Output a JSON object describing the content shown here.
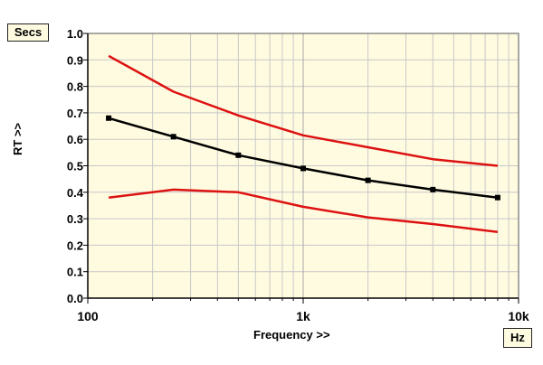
{
  "chart_data": {
    "type": "line",
    "x_scale": "log",
    "xlim": [
      100,
      10000
    ],
    "ylim": [
      0,
      1.0
    ],
    "x_tick_labels": [
      {
        "value": 100,
        "label": "100"
      },
      {
        "value": 1000,
        "label": "1k"
      },
      {
        "value": 10000,
        "label": "10k"
      }
    ],
    "y_ticks": [
      {
        "value": 0.0,
        "label": "0.0"
      },
      {
        "value": 0.1,
        "label": "0.1"
      },
      {
        "value": 0.2,
        "label": "0.2"
      },
      {
        "value": 0.3,
        "label": "0.3"
      },
      {
        "value": 0.4,
        "label": "0.4"
      },
      {
        "value": 0.5,
        "label": "0.5"
      },
      {
        "value": 0.6,
        "label": "0.6"
      },
      {
        "value": 0.7,
        "label": "0.7"
      },
      {
        "value": 0.8,
        "label": "0.8"
      },
      {
        "value": 0.9,
        "label": "0.9"
      },
      {
        "value": 1.0,
        "label": "1.0"
      }
    ],
    "xlabel": "Frequency >>",
    "ylabel": "RT >>",
    "x_unit": "Hz",
    "y_unit": "Secs",
    "grid": true,
    "x": [
      125,
      250,
      500,
      1000,
      2000,
      4000,
      8000
    ],
    "series": [
      {
        "color": "#dd1111",
        "markers": false,
        "values": [
          0.915,
          0.78,
          0.69,
          0.615,
          0.57,
          0.525,
          0.5
        ]
      },
      {
        "color": "#000000",
        "markers": true,
        "values": [
          0.68,
          0.61,
          0.54,
          0.49,
          0.445,
          0.41,
          0.38
        ]
      },
      {
        "color": "#dd1111",
        "markers": false,
        "values": [
          0.38,
          0.41,
          0.4,
          0.345,
          0.305,
          0.28,
          0.25
        ]
      }
    ],
    "background_color": "#fffbe0",
    "grid_color": "#c8c8c8"
  }
}
